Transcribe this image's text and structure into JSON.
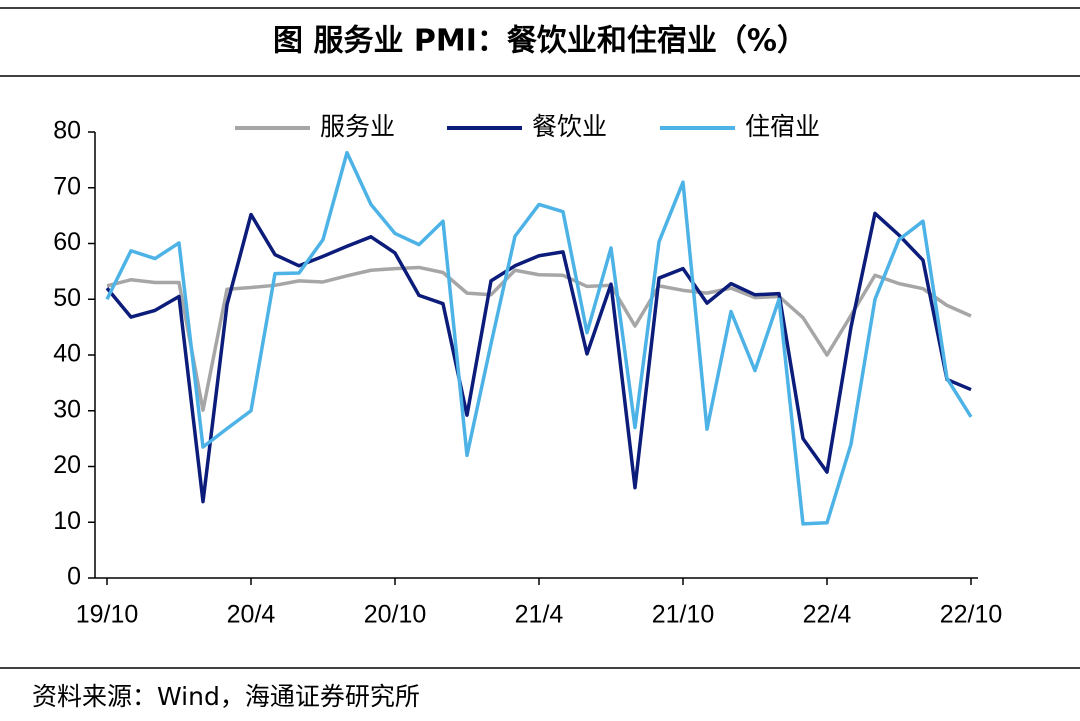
{
  "chart_data": {
    "type": "line",
    "title": "图  服务业 PMI：餐饮业和住宿业（%）",
    "source": "资料来源：Wind，海通证券研究所",
    "categories": [
      "19/10",
      null,
      null,
      null,
      null,
      null,
      "20/4",
      null,
      null,
      null,
      null,
      null,
      "20/10",
      null,
      null,
      null,
      null,
      null,
      "21/4",
      null,
      null,
      null,
      null,
      null,
      "21/10",
      null,
      null,
      null,
      null,
      null,
      "22/4",
      null,
      null,
      null,
      null,
      null,
      "22/10"
    ],
    "series": [
      {
        "name": "服务业",
        "color": "#a6a6a6",
        "values": [
          52.4,
          53.5,
          53,
          53,
          30.1,
          51.8,
          52.1,
          52.5,
          53.3,
          53.1,
          54.2,
          55.2,
          55.5,
          55.7,
          54.8,
          51.1,
          50.8,
          55.2,
          54.4,
          54.3,
          52.3,
          52.5,
          45.2,
          52.4,
          51.6,
          51.1,
          52,
          50.3,
          50.5,
          46.7,
          40,
          47.1,
          54.3,
          52.8,
          51.9,
          48.9,
          47
        ]
      },
      {
        "name": "餐饮业",
        "color": "#0c1c7a",
        "values": [
          52,
          46.8,
          48,
          50.5,
          13.7,
          49,
          65.2,
          58,
          56,
          57.7,
          59.5,
          61.2,
          58.3,
          50.7,
          49.2,
          29.2,
          53.3,
          56,
          57.8,
          58.5,
          40.2,
          52.7,
          16.2,
          53.8,
          55.5,
          49.3,
          52.8,
          50.8,
          51,
          25,
          19,
          45,
          65.4,
          61.5,
          57,
          35.6,
          33.8
        ]
      },
      {
        "name": "住宿业",
        "color": "#4db3e6",
        "values": [
          50,
          58.7,
          57.3,
          60.1,
          23.5,
          26.8,
          30,
          54.6,
          54.7,
          60.7,
          76.3,
          67,
          61.8,
          59.8,
          64,
          22,
          42,
          61.3,
          67,
          65.7,
          44,
          59.2,
          27,
          60.3,
          71,
          26.7,
          47.8,
          37.2,
          50,
          9.7,
          9.9,
          24,
          50,
          60.7,
          64,
          35.8,
          28.9
        ]
      }
    ],
    "ylim": [
      0,
      80
    ],
    "yticks": [
      0,
      10,
      20,
      30,
      40,
      50,
      60,
      70,
      80
    ],
    "legend": "top"
  }
}
